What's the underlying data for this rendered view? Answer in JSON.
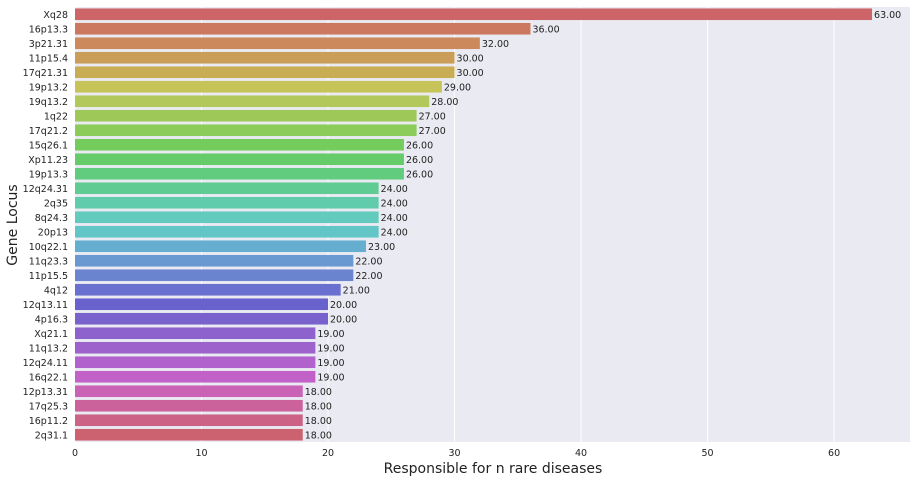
{
  "chart_data": {
    "type": "bar",
    "orientation": "horizontal",
    "xlabel": "Responsible for n rare diseases",
    "ylabel": "Gene Locus",
    "xlim": [
      0,
      66
    ],
    "xticks": [
      0,
      10,
      20,
      30,
      40,
      50,
      60
    ],
    "grid": true,
    "legend": "none",
    "value_label_format": "2-decimal",
    "background": "#eaeaf2",
    "categories": [
      "Xq28",
      "16p13.3",
      "3p21.31",
      "11p15.4",
      "17q21.31",
      "19p13.2",
      "19q13.2",
      "1q22",
      "17q21.2",
      "15q26.1",
      "Xp11.23",
      "19p13.3",
      "12q24.31",
      "2q35",
      "8q24.3",
      "20p13",
      "10q22.1",
      "11q23.3",
      "11p15.5",
      "4q12",
      "12q13.11",
      "4p16.3",
      "Xq21.1",
      "11q13.2",
      "12q24.11",
      "16q22.1",
      "12p13.31",
      "17q25.3",
      "16p11.2",
      "2q31.1"
    ],
    "values": [
      63,
      36,
      32,
      30,
      30,
      29,
      28,
      27,
      27,
      26,
      26,
      26,
      24,
      24,
      24,
      24,
      23,
      22,
      22,
      21,
      20,
      20,
      19,
      19,
      19,
      19,
      18,
      18,
      18,
      18
    ],
    "value_labels": [
      "63.00",
      "36.00",
      "32.00",
      "30.00",
      "30.00",
      "29.00",
      "28.00",
      "27.00",
      "27.00",
      "26.00",
      "26.00",
      "26.00",
      "24.00",
      "24.00",
      "24.00",
      "24.00",
      "23.00",
      "22.00",
      "22.00",
      "21.00",
      "20.00",
      "20.00",
      "19.00",
      "19.00",
      "19.00",
      "19.00",
      "18.00",
      "18.00",
      "18.00",
      "18.00"
    ],
    "colors": [
      "#cc6468",
      "#cc7860",
      "#cc8a5c",
      "#ca9e58",
      "#c8ad55",
      "#c6c459",
      "#b3c85a",
      "#9ec858",
      "#8ccc5a",
      "#74cc5c",
      "#66cc6a",
      "#62cc7e",
      "#60cc94",
      "#60ccac",
      "#62cbbd",
      "#62c6c6",
      "#66aed0",
      "#6a98d0",
      "#6a84d0",
      "#6a70d0",
      "#6a62cc",
      "#7a62cc",
      "#8e62cc",
      "#9e62cc",
      "#b262cc",
      "#c262c8",
      "#ca62b6",
      "#cc629c",
      "#cc6286",
      "#cc6270"
    ]
  }
}
